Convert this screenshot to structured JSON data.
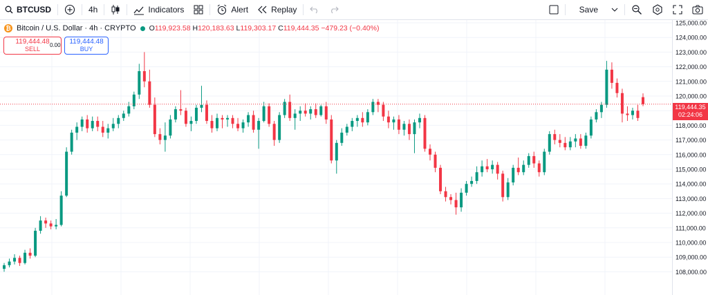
{
  "toolbar": {
    "symbol": "BTCUSD",
    "interval": "4h",
    "indicators_label": "Indicators",
    "alert_label": "Alert",
    "replay_label": "Replay",
    "save_label": "Save"
  },
  "legend": {
    "title": "Bitcoin / U.S. Dollar · 4h · CRYPTO",
    "open_label": "O",
    "open": "119,923.58",
    "high_label": "H",
    "high": "120,183.63",
    "low_label": "L",
    "low": "119,303.17",
    "close_label": "C",
    "close": "119,444.35",
    "change": "−479.23 (−0.40%)"
  },
  "trade": {
    "sell_price": "119,444.48",
    "sell_label": "SELL",
    "spread": "0.00",
    "buy_price": "119,444.48",
    "buy_label": "BUY"
  },
  "current_price": {
    "price": "119,444.35",
    "countdown": "02:24:06"
  },
  "colors": {
    "up": "#089981",
    "down": "#f23645",
    "accent": "#2962ff",
    "grid": "#f0f3fa"
  },
  "chart_data": {
    "type": "candlestick",
    "y_axis": {
      "min": 107500,
      "max": 125000,
      "position": "right"
    },
    "y_ticks": [
      "125,000.00",
      "124,000.00",
      "123,000.00",
      "122,000.00",
      "121,000.00",
      "120,000.00",
      "119,000.00",
      "118,000.00",
      "117,000.00",
      "116,000.00",
      "115,000.00",
      "114,000.00",
      "113,000.00",
      "112,000.00",
      "111,000.00",
      "110,000.00",
      "109,000.00",
      "108,000.00"
    ],
    "grid": true,
    "candles": [
      [
        108200,
        108600,
        108000,
        108450
      ],
      [
        108450,
        108900,
        108300,
        108700
      ],
      [
        108700,
        109200,
        108500,
        108950
      ],
      [
        108950,
        109100,
        108400,
        108600
      ],
      [
        108600,
        109500,
        108500,
        109300
      ],
      [
        109300,
        109600,
        108900,
        109100
      ],
      [
        109100,
        111000,
        109000,
        110800
      ],
      [
        110800,
        111800,
        110600,
        111500
      ],
      [
        111500,
        111700,
        111000,
        111300
      ],
      [
        111300,
        111500,
        110900,
        111100
      ],
      [
        111100,
        111600,
        110900,
        111200
      ],
      [
        111200,
        113500,
        111100,
        113200
      ],
      [
        113200,
        116500,
        113100,
        116200
      ],
      [
        116200,
        117700,
        116000,
        117500
      ],
      [
        117500,
        118200,
        117000,
        117900
      ],
      [
        117900,
        118600,
        117600,
        118400
      ],
      [
        118400,
        118700,
        117500,
        117800
      ],
      [
        117800,
        118600,
        117600,
        118300
      ],
      [
        118300,
        118600,
        117600,
        117900
      ],
      [
        117900,
        118300,
        117200,
        117500
      ],
      [
        117500,
        118100,
        117100,
        117800
      ],
      [
        117800,
        118500,
        117600,
        118100
      ],
      [
        118100,
        118700,
        117800,
        118500
      ],
      [
        118500,
        119000,
        118300,
        118800
      ],
      [
        118800,
        119600,
        118600,
        119300
      ],
      [
        119300,
        120300,
        119100,
        120100
      ],
      [
        120100,
        122200,
        119800,
        121700
      ],
      [
        121700,
        123000,
        120600,
        121000
      ],
      [
        121000,
        121800,
        119200,
        119400
      ],
      [
        119400,
        119900,
        117200,
        117400
      ],
      [
        117400,
        117800,
        116700,
        117000
      ],
      [
        117000,
        118200,
        116200,
        117300
      ],
      [
        117300,
        118700,
        117100,
        118400
      ],
      [
        118400,
        119300,
        118200,
        119100
      ],
      [
        119100,
        120400,
        118700,
        119000
      ],
      [
        119000,
        119200,
        117900,
        118100
      ],
      [
        118100,
        118600,
        117600,
        118300
      ],
      [
        118300,
        119400,
        118100,
        119200
      ],
      [
        119200,
        120700,
        118900,
        119400
      ],
      [
        119400,
        119700,
        118100,
        118300
      ],
      [
        118300,
        118700,
        117500,
        117800
      ],
      [
        117800,
        118800,
        117600,
        118500
      ],
      [
        118500,
        118700,
        117800,
        118400
      ],
      [
        118400,
        118700,
        117900,
        118500
      ],
      [
        118500,
        118700,
        117800,
        118100
      ],
      [
        118100,
        118500,
        117600,
        117800
      ],
      [
        117800,
        118400,
        117500,
        118200
      ],
      [
        118200,
        118900,
        117900,
        118700
      ],
      [
        118700,
        119000,
        117500,
        117700
      ],
      [
        117700,
        118500,
        116400,
        118300
      ],
      [
        118300,
        119600,
        118200,
        119300
      ],
      [
        119300,
        119500,
        117900,
        118100
      ],
      [
        118100,
        118300,
        116600,
        117000
      ],
      [
        117000,
        118900,
        116800,
        118700
      ],
      [
        118700,
        119800,
        118500,
        119600
      ],
      [
        119600,
        120100,
        118300,
        118500
      ],
      [
        118500,
        119100,
        117700,
        118800
      ],
      [
        118800,
        119300,
        118300,
        119000
      ],
      [
        119000,
        119500,
        118600,
        118800
      ],
      [
        118800,
        119300,
        118400,
        119100
      ],
      [
        119100,
        119500,
        118500,
        118700
      ],
      [
        118700,
        119400,
        118600,
        119300
      ],
      [
        119300,
        119600,
        118100,
        118400
      ],
      [
        118400,
        118700,
        115400,
        115600
      ],
      [
        115600,
        117000,
        114700,
        116800
      ],
      [
        116800,
        117800,
        116600,
        117500
      ],
      [
        117500,
        118100,
        117300,
        117900
      ],
      [
        117900,
        118500,
        117600,
        118300
      ],
      [
        118300,
        118700,
        117900,
        118500
      ],
      [
        118500,
        118900,
        117900,
        118200
      ],
      [
        118200,
        119100,
        118000,
        118900
      ],
      [
        118900,
        119800,
        118700,
        119600
      ],
      [
        119600,
        119800,
        118900,
        119400
      ],
      [
        119400,
        119600,
        118300,
        118600
      ],
      [
        118600,
        119000,
        117800,
        118200
      ],
      [
        118200,
        118600,
        117700,
        118400
      ],
      [
        118400,
        118700,
        117400,
        117700
      ],
      [
        117700,
        118300,
        117300,
        118100
      ],
      [
        118100,
        118400,
        117000,
        117400
      ],
      [
        117400,
        118400,
        116100,
        118200
      ],
      [
        118200,
        118800,
        117800,
        118500
      ],
      [
        118500,
        118700,
        116200,
        116400
      ],
      [
        116400,
        116700,
        115600,
        116000
      ],
      [
        116000,
        116200,
        114800,
        115100
      ],
      [
        115100,
        115300,
        113300,
        113500
      ],
      [
        113500,
        113800,
        112800,
        113100
      ],
      [
        113100,
        113300,
        112600,
        112900
      ],
      [
        112900,
        113400,
        111900,
        112400
      ],
      [
        112400,
        113700,
        112100,
        113400
      ],
      [
        113400,
        114200,
        113200,
        114000
      ],
      [
        114000,
        114500,
        113800,
        114200
      ],
      [
        114200,
        115200,
        114000,
        114800
      ],
      [
        114800,
        115600,
        114500,
        115200
      ],
      [
        115200,
        115700,
        114800,
        115000
      ],
      [
        115000,
        115600,
        114700,
        115300
      ],
      [
        115300,
        115500,
        114300,
        114700
      ],
      [
        114700,
        114900,
        112800,
        113100
      ],
      [
        113100,
        114400,
        112900,
        114100
      ],
      [
        114100,
        115300,
        113900,
        115100
      ],
      [
        115100,
        115800,
        114600,
        114800
      ],
      [
        114800,
        115600,
        114600,
        115300
      ],
      [
        115300,
        116100,
        115100,
        115900
      ],
      [
        115900,
        116200,
        115100,
        115400
      ],
      [
        115400,
        115600,
        114500,
        114800
      ],
      [
        114800,
        116400,
        114600,
        116200
      ],
      [
        116200,
        117600,
        116000,
        117400
      ],
      [
        117400,
        117700,
        116700,
        117000
      ],
      [
        117000,
        117400,
        116500,
        116800
      ],
      [
        116800,
        117200,
        116300,
        116500
      ],
      [
        116500,
        117200,
        116300,
        116900
      ],
      [
        116900,
        117400,
        116500,
        117100
      ],
      [
        117100,
        117400,
        116400,
        116600
      ],
      [
        116600,
        117500,
        116400,
        117300
      ],
      [
        117300,
        118600,
        117100,
        118400
      ],
      [
        118400,
        119100,
        118200,
        118900
      ],
      [
        118900,
        119600,
        118500,
        119400
      ],
      [
        119400,
        122400,
        119200,
        121800
      ],
      [
        121800,
        122300,
        120500,
        120900
      ],
      [
        120900,
        121200,
        119900,
        120200
      ],
      [
        120200,
        120500,
        118200,
        118800
      ],
      [
        118800,
        119300,
        118300,
        118700
      ],
      [
        118700,
        119200,
        118400,
        119000
      ],
      [
        119000,
        119400,
        118300,
        118500
      ],
      [
        119923.58,
        120183.63,
        119303.17,
        119444.35
      ]
    ]
  }
}
